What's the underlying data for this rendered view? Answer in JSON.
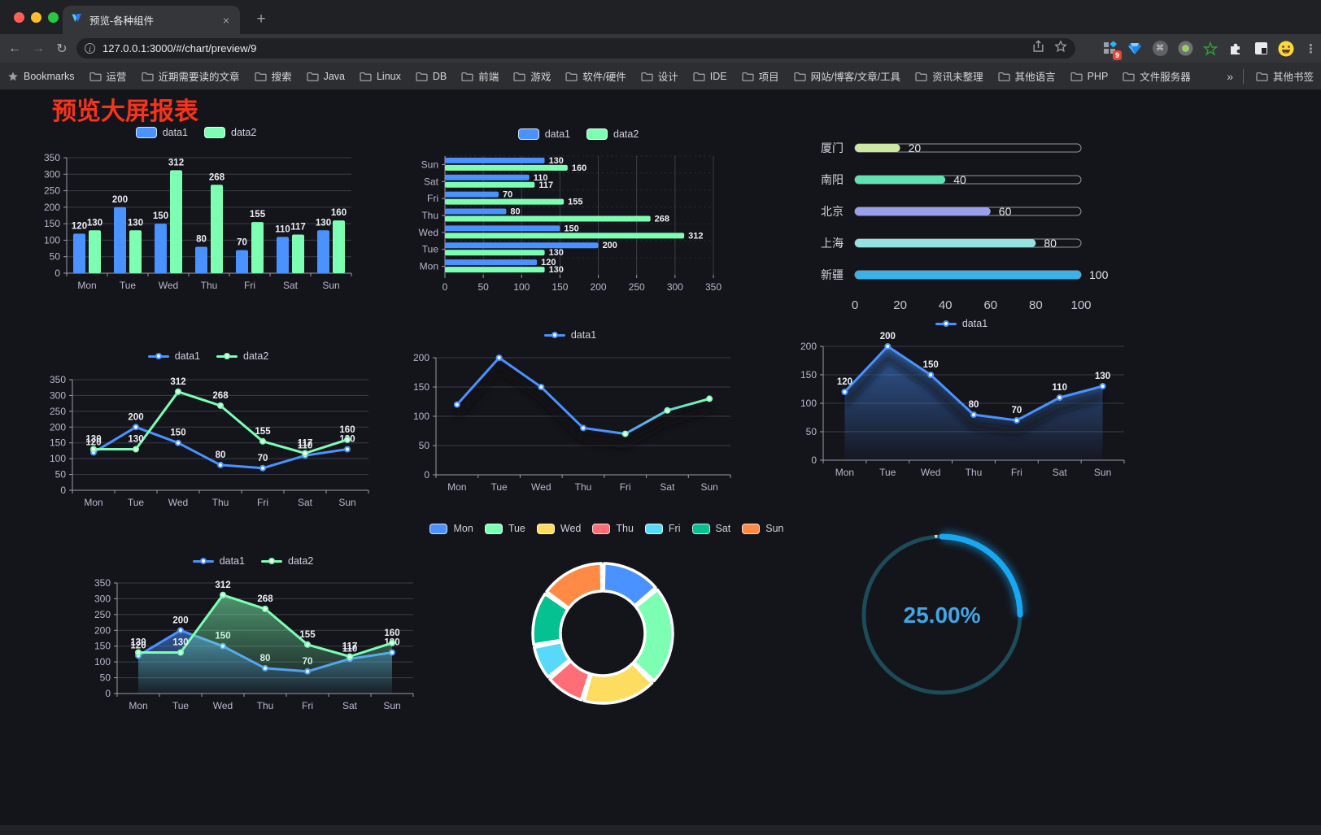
{
  "browser": {
    "tab_title": "预览-各种组件",
    "url": "127.0.0.1:3000/#/chart/preview/9",
    "new_tab_label": "+",
    "close_label": "×",
    "extension_badge": "9",
    "bookmarks_label": "Bookmarks",
    "bookmarks": [
      "运营",
      "近期需要读的文章",
      "搜索",
      "Java",
      "Linux",
      "DB",
      "前端",
      "游戏",
      "软件/硬件",
      "设计",
      "IDE",
      "项目",
      "网站/博客/文章/工具",
      "资讯未整理",
      "其他语言",
      "PHP",
      "文件服务器"
    ],
    "bookmarks_overflow": "»",
    "other_bookmarks": "其他书签"
  },
  "page": {
    "title": "预览大屏报表",
    "title_color": "#f5341c"
  },
  "palette": {
    "background": "#14141b",
    "axis_text": "#b9b8ce",
    "grid_line": "#3c3d47",
    "axis_line": "#9b9caa",
    "value_label": "#edeef3",
    "data1": "#4992ff",
    "data2": "#7cffb2"
  },
  "chart_data": [
    {
      "id": "grouped-bar",
      "type": "bar",
      "categories": [
        "Mon",
        "Tue",
        "Wed",
        "Thu",
        "Fri",
        "Sat",
        "Sun"
      ],
      "series": [
        {
          "name": "data1",
          "color": "#4992ff",
          "values": [
            120,
            200,
            150,
            80,
            70,
            110,
            130
          ]
        },
        {
          "name": "data2",
          "color": "#7cffb2",
          "values": [
            130,
            130,
            312,
            268,
            155,
            117,
            160
          ]
        }
      ],
      "ylim": [
        0,
        350
      ],
      "ytick": 50,
      "show_labels": true,
      "legend_position": "top"
    },
    {
      "id": "horizontal-bar",
      "type": "bar",
      "orientation": "horizontal",
      "categories": [
        "Mon",
        "Tue",
        "Wed",
        "Thu",
        "Fri",
        "Sat",
        "Sun"
      ],
      "series": [
        {
          "name": "data1",
          "color": "#4992ff",
          "values": [
            120,
            200,
            150,
            80,
            70,
            110,
            130
          ]
        },
        {
          "name": "data2",
          "color": "#7cffb2",
          "values": [
            130,
            130,
            312,
            268,
            155,
            117,
            160
          ]
        }
      ],
      "xlim": [
        0,
        350
      ],
      "xtick": 50,
      "show_labels": true,
      "legend_position": "top"
    },
    {
      "id": "progress-bars",
      "type": "bar",
      "variant": "capsule-progress",
      "categories": [
        "厦门",
        "南阳",
        "北京",
        "上海",
        "新疆"
      ],
      "values": [
        20,
        40,
        60,
        80,
        100
      ],
      "colors": [
        "#cbe7a2",
        "#5ee3b0",
        "#9aa0ee",
        "#93e4e1",
        "#39b3e7"
      ],
      "xlim": [
        0,
        100
      ],
      "xticks": [
        0,
        20,
        40,
        60,
        80,
        100
      ],
      "show_labels": true
    },
    {
      "id": "two-line",
      "type": "line",
      "categories": [
        "Mon",
        "Tue",
        "Wed",
        "Thu",
        "Fri",
        "Sat",
        "Sun"
      ],
      "series": [
        {
          "name": "data1",
          "color": "#4992ff",
          "values": [
            120,
            200,
            150,
            80,
            70,
            110,
            130
          ]
        },
        {
          "name": "data2",
          "color": "#7cffb2",
          "values": [
            130,
            130,
            312,
            268,
            155,
            117,
            160
          ]
        }
      ],
      "ylim": [
        0,
        350
      ],
      "ytick": 50,
      "show_labels": true
    },
    {
      "id": "gradient-line",
      "type": "line",
      "categories": [
        "Mon",
        "Tue",
        "Wed",
        "Thu",
        "Fri",
        "Sat",
        "Sun"
      ],
      "series": [
        {
          "name": "data1",
          "color": "#4992ff",
          "color_end": "#7cffb2",
          "values": [
            120,
            200,
            150,
            80,
            70,
            110,
            130
          ]
        }
      ],
      "ylim": [
        0,
        200
      ],
      "ytick": 50,
      "show_labels": false
    },
    {
      "id": "area-line",
      "type": "line",
      "area": true,
      "categories": [
        "Mon",
        "Tue",
        "Wed",
        "Thu",
        "Fri",
        "Sat",
        "Sun"
      ],
      "series": [
        {
          "name": "data1",
          "color": "#4992ff",
          "values": [
            120,
            200,
            150,
            80,
            70,
            110,
            130
          ]
        }
      ],
      "ylim": [
        0,
        200
      ],
      "ytick": 50,
      "show_labels": true
    },
    {
      "id": "two-line-area",
      "type": "line",
      "area": true,
      "categories": [
        "Mon",
        "Tue",
        "Wed",
        "Thu",
        "Fri",
        "Sat",
        "Sun"
      ],
      "series": [
        {
          "name": "data1",
          "color": "#4992ff",
          "values": [
            120,
            200,
            150,
            80,
            70,
            110,
            130
          ]
        },
        {
          "name": "data2",
          "color": "#7cffb2",
          "values": [
            130,
            130,
            312,
            268,
            155,
            117,
            160
          ]
        }
      ],
      "ylim": [
        0,
        350
      ],
      "ytick": 50,
      "show_labels": true
    },
    {
      "id": "donut",
      "type": "pie",
      "inner_radius_ratio": 0.6,
      "items": [
        {
          "label": "Mon",
          "value": 120,
          "color": "#4992ff"
        },
        {
          "label": "Tue",
          "value": 200,
          "color": "#7cffb2"
        },
        {
          "label": "Wed",
          "value": 150,
          "color": "#fddd60"
        },
        {
          "label": "Thu",
          "value": 80,
          "color": "#ff6e76"
        },
        {
          "label": "Fri",
          "value": 70,
          "color": "#58d9f9"
        },
        {
          "label": "Sat",
          "value": 110,
          "color": "#05c091"
        },
        {
          "label": "Sun",
          "value": 130,
          "color": "#ff8a45"
        }
      ]
    },
    {
      "id": "gauge",
      "type": "gauge",
      "value": 25,
      "display": "25.00%",
      "color": "#18a8f2",
      "track_color": "#1d4b58",
      "text_color": "#42a5e5"
    }
  ]
}
